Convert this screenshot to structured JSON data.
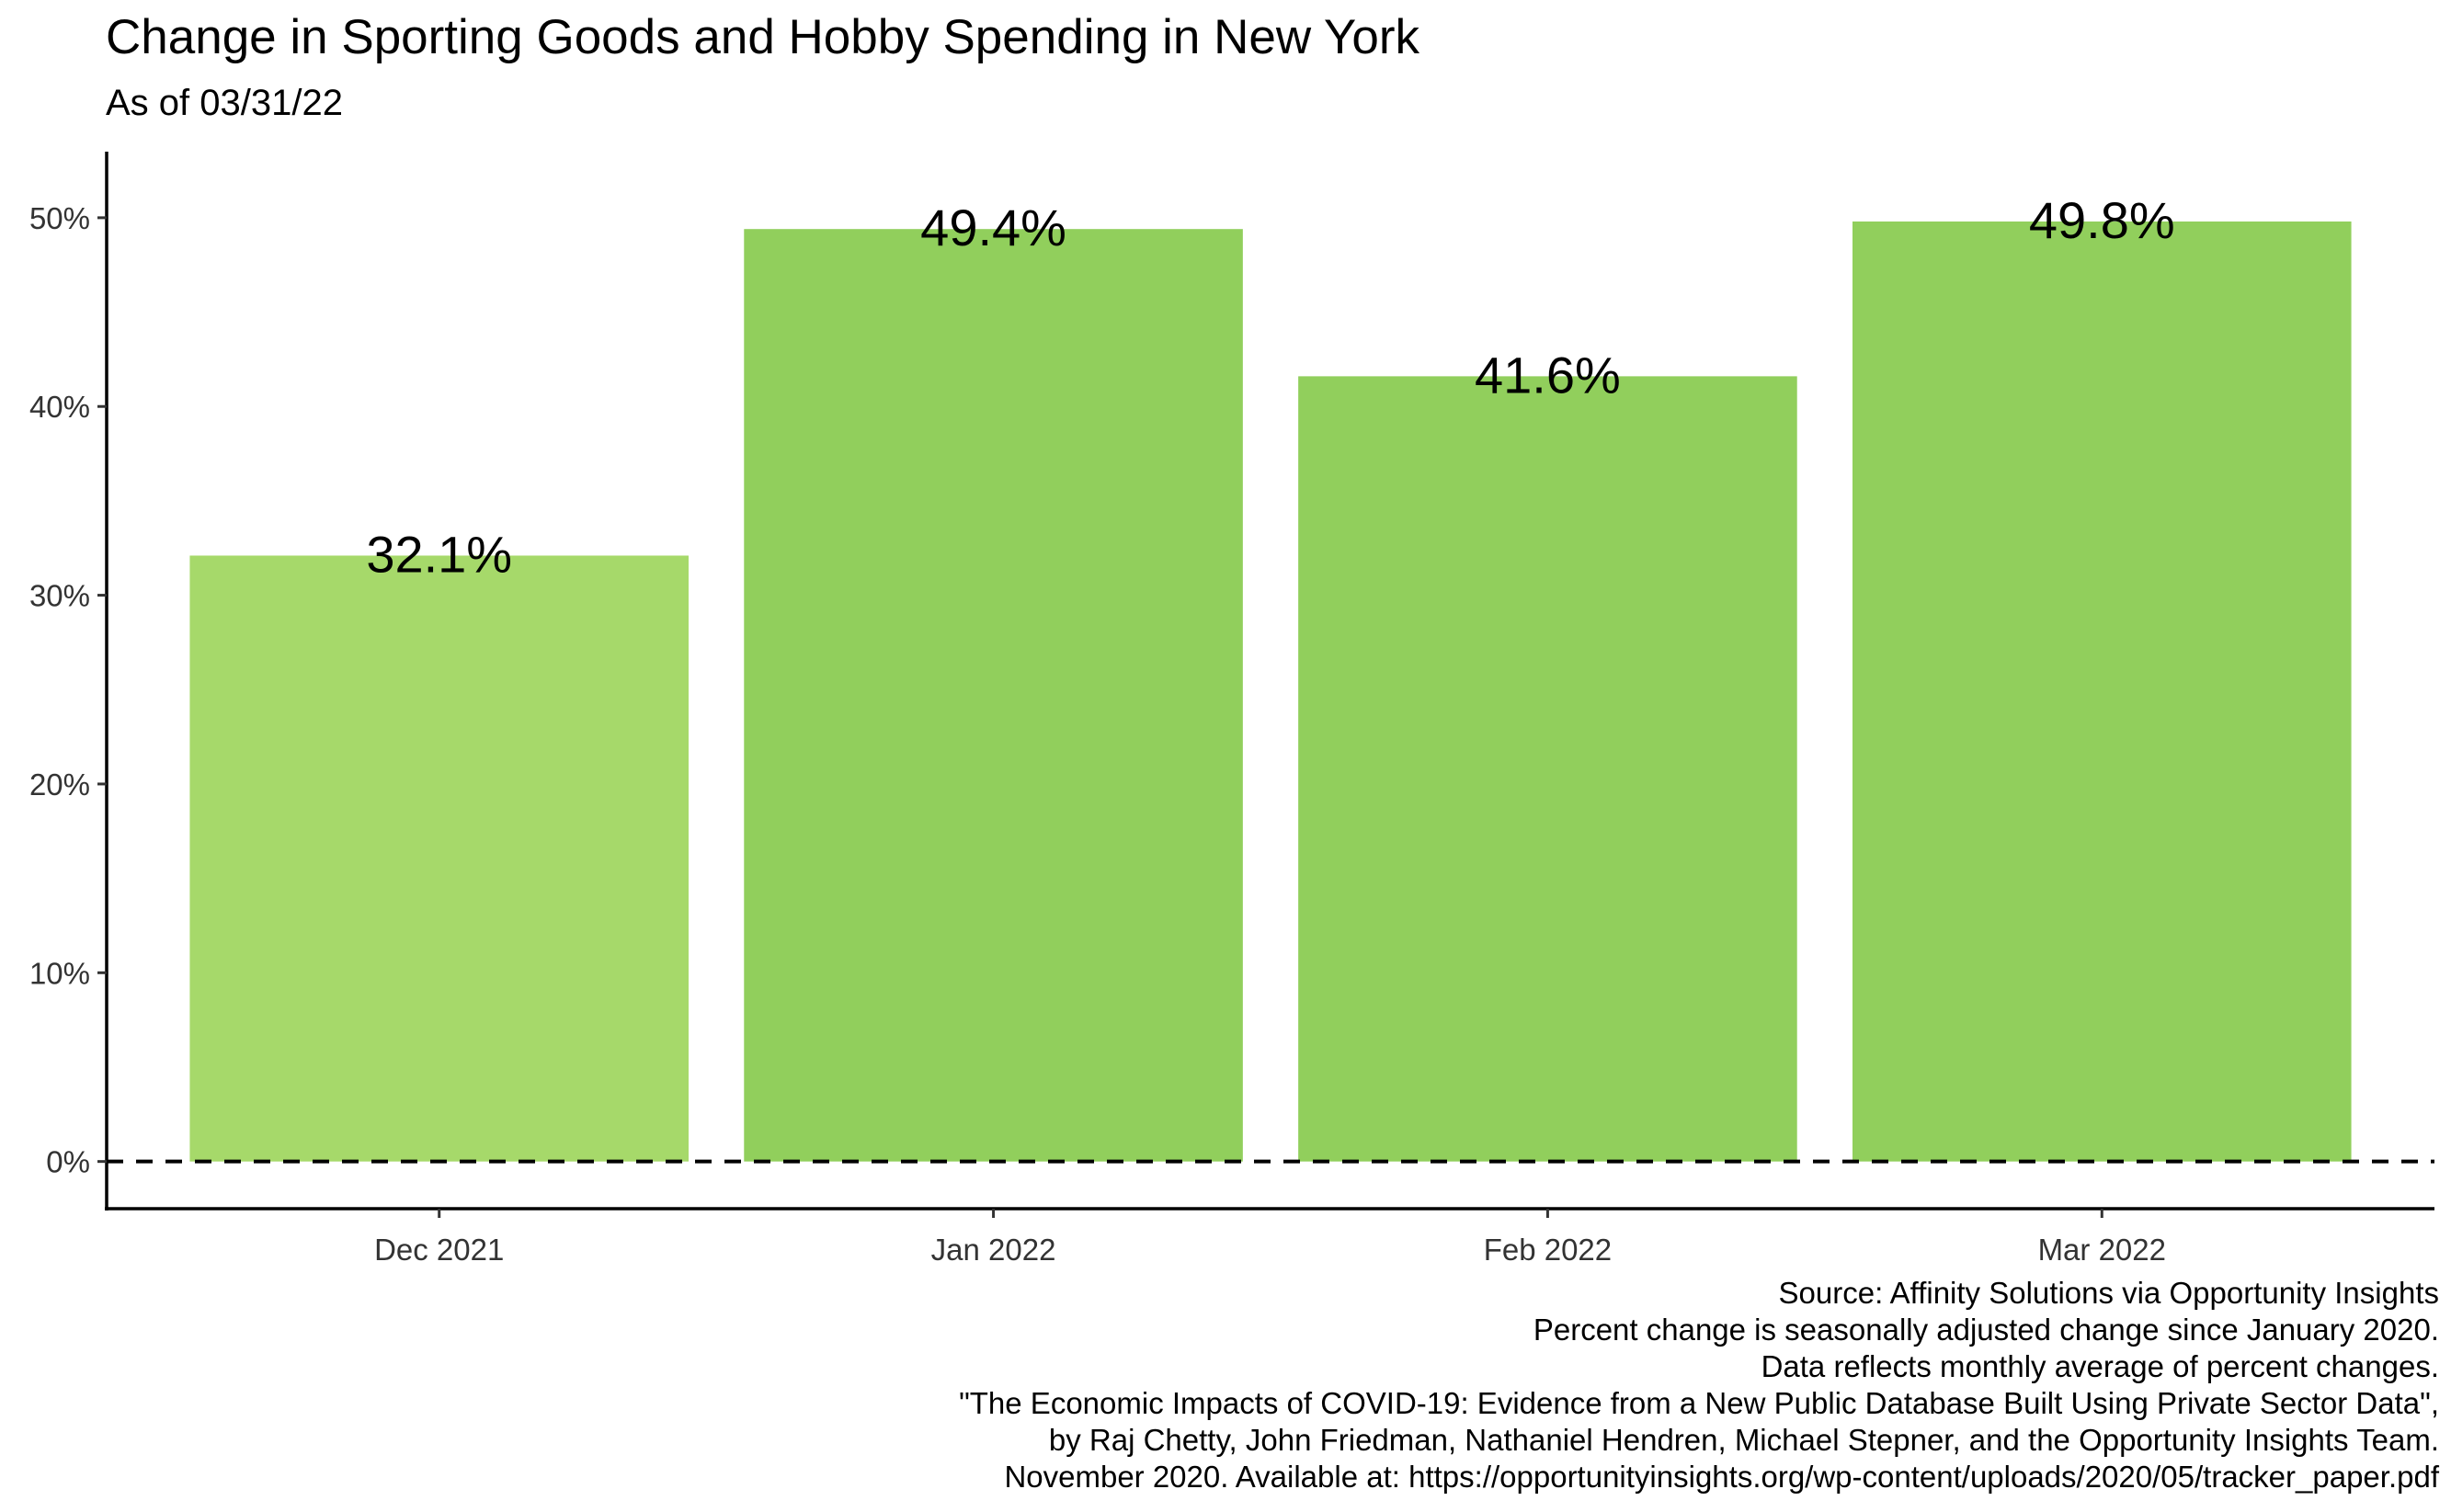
{
  "title": "Change in Sporting Goods and Hobby Spending in New York",
  "subtitle": "As of 03/31/22",
  "caption_lines": [
    "Source: Affinity Solutions via Opportunity Insights",
    "Percent change is seasonally adjusted change since January 2020.",
    "Data reflects monthly average of percent changes.",
    "\"The Economic Impacts of COVID-19: Evidence from a New Public Database Built Using Private Sector Data\",",
    "by Raj Chetty, John Friedman, Nathaniel Hendren, Michael Stepner, and the Opportunity Insights Team.",
    "November 2020. Available at: https://opportunityinsights.org/wp-content/uploads/2020/05/tracker_paper.pdf"
  ],
  "colors": {
    "bar_first": "#a6d96a",
    "bar_other": "#91cf5c",
    "axis": "#000000",
    "tick_text": "#333333"
  },
  "chart_data": {
    "type": "bar",
    "title": "Change in Sporting Goods and Hobby Spending in New York",
    "subtitle": "As of 03/31/22",
    "xlabel": "",
    "ylabel": "",
    "categories": [
      "Dec 2021",
      "Jan 2022",
      "Feb 2022",
      "Mar 2022"
    ],
    "values": [
      32.1,
      49.4,
      41.6,
      49.8
    ],
    "data_labels": [
      "32.1%",
      "49.4%",
      "41.6%",
      "49.8%"
    ],
    "y_ticks": [
      0,
      10,
      20,
      30,
      40,
      50
    ],
    "y_tick_labels": [
      "0%",
      "10%",
      "20%",
      "30%",
      "40%",
      "50%"
    ],
    "ylim": [
      -2.5,
      53.5
    ],
    "reference_line": {
      "y": 0,
      "style": "dashed"
    },
    "grid": false,
    "legend": "none"
  }
}
